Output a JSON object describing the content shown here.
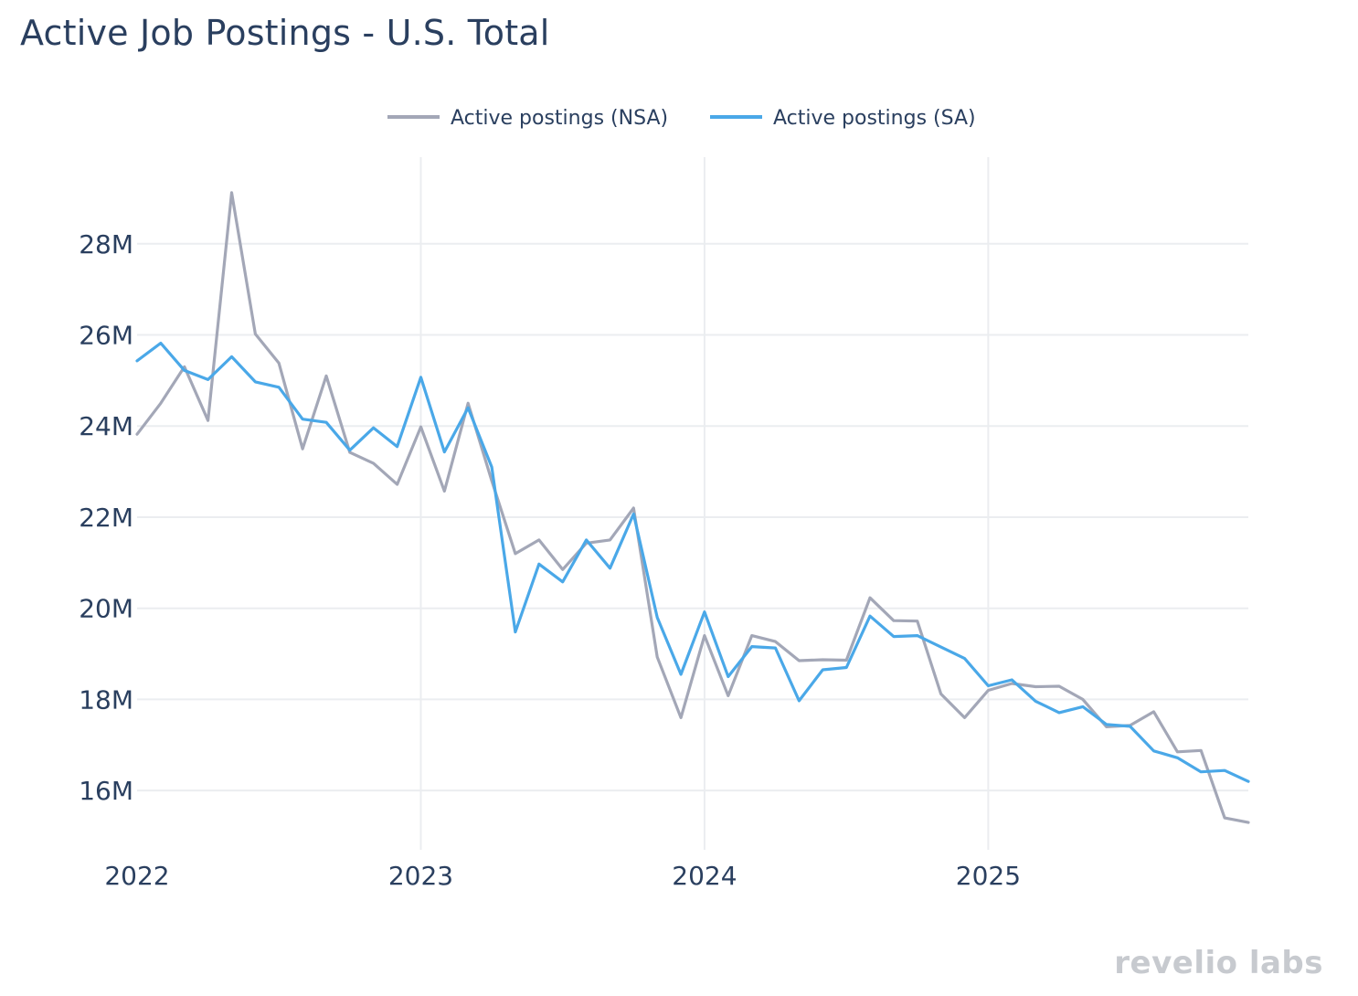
{
  "chart_data": {
    "type": "line",
    "title": "Active Job Postings - U.S. Total",
    "xlabel": "",
    "ylabel": "",
    "x_ticks": [
      "2022",
      "2023",
      "2024",
      "2025"
    ],
    "y_ticks": [
      "16M",
      "18M",
      "20M",
      "22M",
      "24M",
      "26M",
      "28M"
    ],
    "ylim": [
      14.7,
      29.9
    ],
    "x_range": [
      2022.0,
      2025.9167
    ],
    "legend_position": "top-center",
    "grid": true,
    "x": [
      2022.0,
      2022.0833,
      2022.1667,
      2022.25,
      2022.3333,
      2022.4167,
      2022.5,
      2022.5833,
      2022.6667,
      2022.75,
      2022.8333,
      2022.9167,
      2023.0,
      2023.0833,
      2023.1667,
      2023.25,
      2023.3333,
      2023.4167,
      2023.5,
      2023.5833,
      2023.6667,
      2023.75,
      2023.8333,
      2023.9167,
      2024.0,
      2024.0833,
      2024.1667,
      2024.25,
      2024.3333,
      2024.4167,
      2024.5,
      2024.5833,
      2024.6667,
      2024.75,
      2024.8333,
      2024.9167,
      2025.0,
      2025.0833,
      2025.1667,
      2025.25,
      2025.3333,
      2025.4167,
      2025.5,
      2025.5833,
      2025.6667,
      2025.75,
      2025.8333,
      2025.9167
    ],
    "series": [
      {
        "name": "Active postings (NSA)",
        "color": "#a3a7b7",
        "values": [
          23.82,
          24.5,
          25.3,
          24.12,
          29.12,
          26.02,
          25.38,
          23.5,
          25.1,
          23.42,
          23.18,
          22.72,
          23.98,
          22.57,
          24.5,
          22.8,
          21.2,
          21.5,
          20.85,
          21.43,
          21.5,
          22.2,
          18.93,
          17.6,
          19.4,
          18.08,
          19.4,
          19.27,
          18.85,
          18.87,
          18.86,
          20.23,
          19.73,
          19.72,
          18.12,
          17.6,
          18.2,
          18.35,
          18.28,
          18.29,
          18.0,
          17.4,
          17.43,
          17.73,
          16.85,
          16.88,
          15.4,
          15.3
        ]
      },
      {
        "name": "Active postings (SA)",
        "color": "#4aa8e8",
        "values": [
          25.43,
          25.82,
          25.22,
          25.02,
          25.52,
          24.97,
          24.85,
          24.15,
          24.08,
          23.47,
          23.96,
          23.55,
          25.07,
          23.43,
          24.4,
          23.1,
          19.48,
          20.97,
          20.58,
          21.5,
          20.88,
          22.07,
          19.8,
          18.55,
          19.92,
          18.5,
          19.16,
          19.13,
          17.97,
          18.65,
          18.7,
          19.83,
          19.38,
          19.4,
          19.15,
          18.9,
          18.3,
          18.43,
          17.96,
          17.71,
          17.84,
          17.45,
          17.41,
          16.87,
          16.72,
          16.41,
          16.44,
          16.2
        ]
      }
    ]
  },
  "branding": {
    "logo_text": "revelio labs"
  }
}
